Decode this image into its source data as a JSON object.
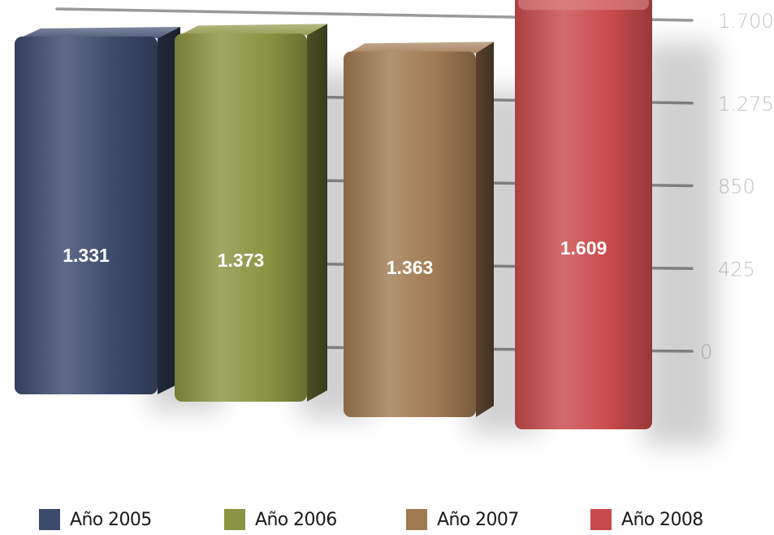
{
  "chart_data": {
    "type": "bar",
    "categories": [
      "Año 2005",
      "Año 2006",
      "Año 2007",
      "Año 2008"
    ],
    "values": [
      1331,
      1373,
      1363,
      1609
    ],
    "value_labels": [
      "1.331",
      "1.373",
      "1.363",
      "1.609"
    ],
    "ylim": [
      0,
      1700
    ],
    "y_ticks": [
      0,
      425,
      850,
      1275,
      1700
    ],
    "y_tick_labels": [
      "0",
      "425",
      "850",
      "1.275",
      "1.700"
    ],
    "y_axis_position": "right",
    "grid": true,
    "legend_position": "bottom",
    "colors": [
      "#3c4a6b",
      "#8a9441",
      "#a07a52",
      "#c94a4c"
    ]
  },
  "legend": {
    "items": [
      {
        "label": "Año 2005",
        "color": "#3c4a6b"
      },
      {
        "label": "Año 2006",
        "color": "#8a9441"
      },
      {
        "label": "Año 2007",
        "color": "#a07a52"
      },
      {
        "label": "Año 2008",
        "color": "#c94a4c"
      }
    ]
  }
}
